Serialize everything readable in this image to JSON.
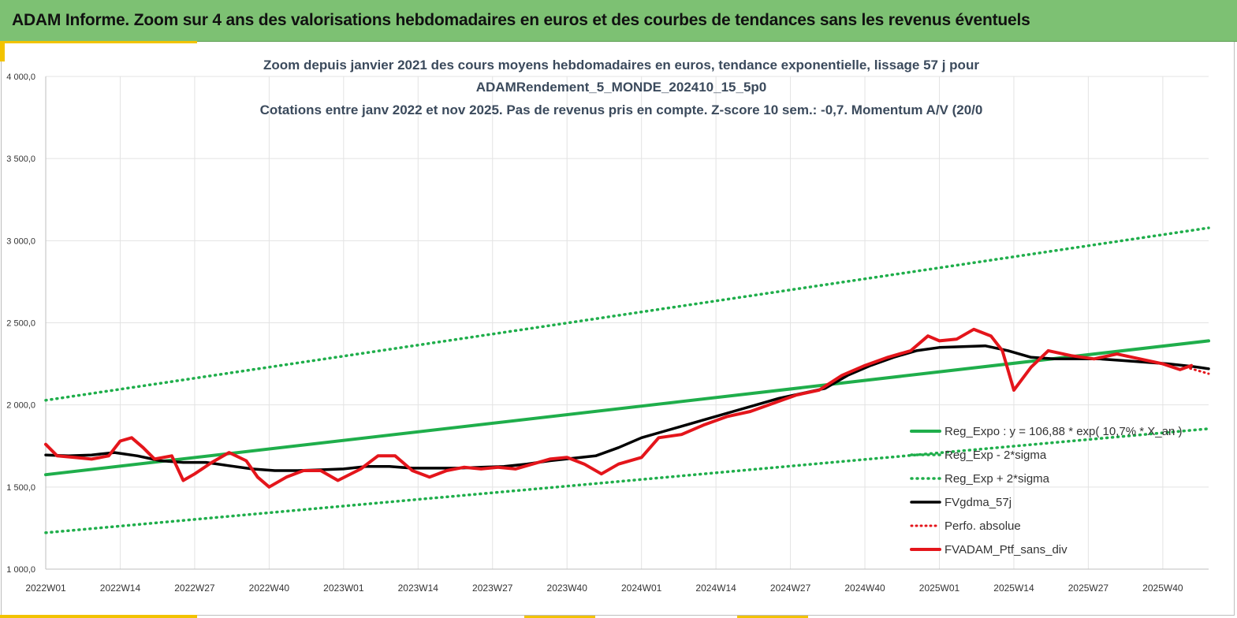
{
  "header": {
    "title": "ADAM Informe. Zoom sur 4 ans des valorisations hebdomadaires en euros et des courbes de tendances sans les revenus éventuels"
  },
  "colors": {
    "header_bg": "#7dc173",
    "accent": "#f2c300",
    "green": "#1fae4b",
    "black": "#000000",
    "red": "#e4151b",
    "title": "#3b4a5c"
  },
  "chart_data": {
    "type": "line",
    "title_lines": [
      "Zoom depuis janvier 2021 des cours moyens hebdomadaires  en euros, tendance exponentielle, lissage 57 j pour",
      "ADAMRendement_5_MONDE_202410_15_5p0",
      "Cotations  entre janv 2022 et nov 2025. Pas de revenus pris en compte. Z-score 10 sem.: -0,7. Momentum A/V (20/0"
    ],
    "x_tick_labels": [
      "2022W01",
      "2022W14",
      "2022W27",
      "2022W40",
      "2023W01",
      "2023W14",
      "2023W27",
      "2023W40",
      "2024W01",
      "2024W14",
      "2024W27",
      "2024W40",
      "2025W01",
      "2025W14",
      "2025W27",
      "2025W40"
    ],
    "x_range": [
      "2022W01",
      "2025W48"
    ],
    "y_tick_labels": [
      "1 000,0",
      "1 500,0",
      "2 000,0",
      "2 500,0",
      "3 000,0",
      "3 500,0",
      "4 000,0"
    ],
    "ylim": [
      1000,
      4000
    ],
    "grid": true,
    "legend_position": "bottom-right",
    "series": [
      {
        "name": "Reg_Expo : y = 106,88 * exp( 10,7% * X_an )",
        "style": "solid-green",
        "x": [
          "2022W01",
          "2025W48"
        ],
        "y": [
          1575,
          2390
        ]
      },
      {
        "name": "Reg_Exp - 2*sigma",
        "style": "dotted-green",
        "x": [
          "2022W01",
          "2025W48"
        ],
        "y": [
          1222,
          1855
        ]
      },
      {
        "name": "Reg_Exp + 2*sigma",
        "style": "dotted-green",
        "x": [
          "2022W01",
          "2025W48"
        ],
        "y": [
          2028,
          3078
        ]
      },
      {
        "name": "FVgdma_57j",
        "style": "solid-black",
        "x": [
          "2022W01",
          "2022W05",
          "2022W09",
          "2022W13",
          "2022W17",
          "2022W21",
          "2022W25",
          "2022W29",
          "2022W33",
          "2022W37",
          "2022W41",
          "2022W45",
          "2022W49",
          "2023W01",
          "2023W05",
          "2023W09",
          "2023W13",
          "2023W17",
          "2023W21",
          "2023W25",
          "2023W29",
          "2023W33",
          "2023W37",
          "2023W41",
          "2023W45",
          "2023W49",
          "2024W01",
          "2024W05",
          "2024W09",
          "2024W13",
          "2024W17",
          "2024W21",
          "2024W25",
          "2024W29",
          "2024W33",
          "2024W37",
          "2024W41",
          "2024W45",
          "2024W49",
          "2025W01",
          "2025W05",
          "2025W09",
          "2025W13",
          "2025W17",
          "2025W21",
          "2025W25",
          "2025W29",
          "2025W33",
          "2025W37",
          "2025W41",
          "2025W45",
          "2025W48"
        ],
        "y": [
          1695,
          1690,
          1695,
          1710,
          1690,
          1660,
          1650,
          1650,
          1630,
          1610,
          1600,
          1600,
          1605,
          1610,
          1625,
          1625,
          1615,
          1615,
          1615,
          1620,
          1625,
          1640,
          1660,
          1675,
          1690,
          1740,
          1800,
          1840,
          1880,
          1920,
          1960,
          2000,
          2040,
          2070,
          2100,
          2180,
          2240,
          2290,
          2330,
          2350,
          2355,
          2360,
          2330,
          2290,
          2280,
          2280,
          2280,
          2270,
          2260,
          2250,
          2235,
          2220
        ]
      },
      {
        "name": "Perfo. absolue",
        "style": "dotted-red",
        "x": [
          "2025W44",
          "2025W46",
          "2025W48"
        ],
        "y": [
          2230,
          2210,
          2190
        ]
      },
      {
        "name": "FVADAM_Ptf_sans_div",
        "style": "solid-red",
        "x": [
          "2022W01",
          "2022W03",
          "2022W06",
          "2022W09",
          "2022W12",
          "2022W14",
          "2022W16",
          "2022W18",
          "2022W20",
          "2022W23",
          "2022W25",
          "2022W27",
          "2022W30",
          "2022W33",
          "2022W36",
          "2022W38",
          "2022W40",
          "2022W43",
          "2022W46",
          "2022W49",
          "2022W52",
          "2023W04",
          "2023W07",
          "2023W10",
          "2023W13",
          "2023W16",
          "2023W19",
          "2023W22",
          "2023W25",
          "2023W28",
          "2023W31",
          "2023W34",
          "2023W37",
          "2023W40",
          "2023W43",
          "2023W46",
          "2023W49",
          "2024W01",
          "2024W04",
          "2024W08",
          "2024W12",
          "2024W16",
          "2024W20",
          "2024W24",
          "2024W28",
          "2024W32",
          "2024W36",
          "2024W40",
          "2024W44",
          "2024W48",
          "2024W51",
          "2025W01",
          "2025W04",
          "2025W07",
          "2025W10",
          "2025W12",
          "2025W14",
          "2025W17",
          "2025W20",
          "2025W24",
          "2025W28",
          "2025W32",
          "2025W36",
          "2025W40",
          "2025W43",
          "2025W45"
        ],
        "y": [
          1760,
          1690,
          1680,
          1670,
          1690,
          1780,
          1800,
          1740,
          1670,
          1690,
          1540,
          1580,
          1650,
          1710,
          1660,
          1560,
          1500,
          1560,
          1600,
          1600,
          1540,
          1610,
          1690,
          1690,
          1600,
          1560,
          1600,
          1620,
          1610,
          1620,
          1610,
          1640,
          1670,
          1680,
          1640,
          1580,
          1640,
          1680,
          1800,
          1820,
          1880,
          1930,
          1960,
          2010,
          2060,
          2090,
          2180,
          2240,
          2290,
          2330,
          2420,
          2390,
          2400,
          2460,
          2420,
          2330,
          2090,
          2230,
          2330,
          2300,
          2280,
          2310,
          2280,
          2250,
          2215,
          2240
        ]
      }
    ]
  }
}
